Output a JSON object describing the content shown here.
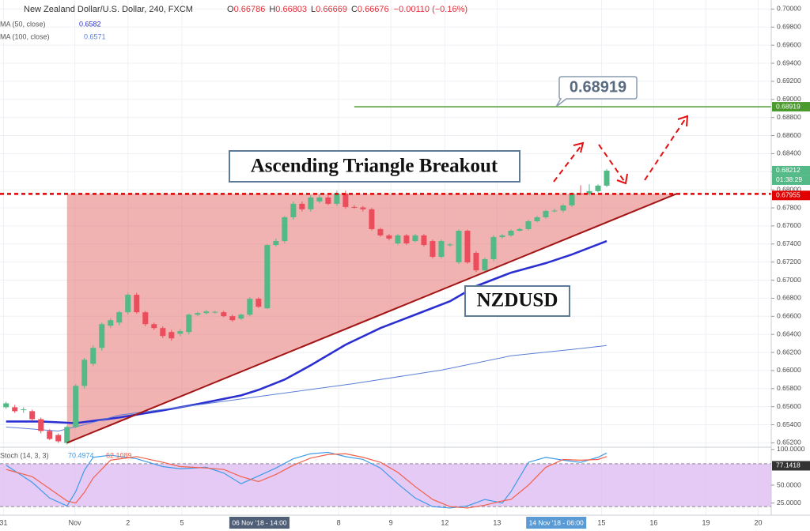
{
  "chart_data": {
    "type": "candlestick",
    "header": {
      "title": "New Zealand Dollar/U.S. Dollar, 240, FXCM",
      "letters": [
        "O",
        "H",
        "L",
        "C"
      ],
      "open": 0.66786,
      "high": 0.66803,
      "low": 0.66669,
      "close": 0.66676,
      "change": "−0.00110 (−0.16%)"
    },
    "up_color": "#53b987",
    "down_color": "#eb4d5c",
    "xlim": [
      -0.7,
      87.9
    ],
    "ylim": [
      0.6516,
      0.701
    ],
    "grid": true,
    "yticks": [
      {
        "value": 0.7,
        "label": "0.70000"
      },
      {
        "value": 0.698,
        "label": "0.69800"
      },
      {
        "value": 0.696,
        "label": "0.69600"
      },
      {
        "value": 0.694,
        "label": "0.69400"
      },
      {
        "value": 0.692,
        "label": "0.69200"
      },
      {
        "value": 0.69,
        "label": "0.69000"
      },
      {
        "value": 0.688,
        "label": "0.68800"
      },
      {
        "value": 0.686,
        "label": "0.68600"
      },
      {
        "value": 0.684,
        "label": "0.68400"
      },
      {
        "value": 0.682,
        "label": "0.68200"
      },
      {
        "value": 0.68,
        "label": "0.68000"
      },
      {
        "value": 0.678,
        "label": "0.67800"
      },
      {
        "value": 0.676,
        "label": "0.67600"
      },
      {
        "value": 0.674,
        "label": "0.67400"
      },
      {
        "value": 0.672,
        "label": "0.67200"
      },
      {
        "value": 0.67,
        "label": "0.67000"
      },
      {
        "value": 0.668,
        "label": "0.66800"
      },
      {
        "value": 0.666,
        "label": "0.66600"
      },
      {
        "value": 0.664,
        "label": "0.66400"
      },
      {
        "value": 0.662,
        "label": "0.66200"
      },
      {
        "value": 0.66,
        "label": "0.66000"
      },
      {
        "value": 0.658,
        "label": "0.65800"
      },
      {
        "value": 0.656,
        "label": "0.65600"
      },
      {
        "value": 0.654,
        "label": "0.65400"
      },
      {
        "value": 0.652,
        "label": "0.65200"
      }
    ],
    "xticks": [
      {
        "value": -0.3,
        "label": "31"
      },
      {
        "value": 7.9,
        "label": "Nov"
      },
      {
        "value": 14,
        "label": "2"
      },
      {
        "value": 20.2,
        "label": "5"
      },
      {
        "value": 38.2,
        "label": "8"
      },
      {
        "value": 44.2,
        "label": "9"
      },
      {
        "value": 50.4,
        "label": "12"
      },
      {
        "value": 56.4,
        "label": "13"
      },
      {
        "value": 68.4,
        "label": "15"
      },
      {
        "value": 74.4,
        "label": "16"
      },
      {
        "value": 80.4,
        "label": "19"
      },
      {
        "value": 86.4,
        "label": "20"
      }
    ],
    "range_xlabels": [
      {
        "value": 29.1,
        "label": "06 Nov '18 - 14:00"
      },
      {
        "value": 63.2,
        "label": "14 Nov '18 - 06:00"
      }
    ],
    "candles": {
      "open": [
        0.65594,
        0.65594,
        0.65567,
        0.6555,
        0.65462,
        0.65331,
        0.65287,
        0.65199,
        0.65375,
        0.6583,
        0.66075,
        0.66251,
        0.66496,
        0.66531,
        0.66645,
        0.66838,
        0.66645,
        0.66513,
        0.6647,
        0.66426,
        0.66408,
        0.66426,
        0.66618,
        0.66636,
        0.66645,
        0.66645,
        0.66601,
        0.66575,
        0.66618,
        0.66794,
        0.66689,
        0.67389,
        0.67433,
        0.67696,
        0.67845,
        0.67784,
        0.67871,
        0.67915,
        0.67845,
        0.67959,
        0.6781,
        0.67805,
        0.67784,
        0.67565,
        0.67495,
        0.67407,
        0.67495,
        0.67433,
        0.67495,
        0.67433,
        0.67258,
        0.67389,
        0.67197,
        0.67547,
        0.67302,
        0.67109,
        0.67232,
        0.67477,
        0.67495,
        0.67547,
        0.67565,
        0.67652,
        0.67696,
        0.67766,
        0.6777,
        0.67827,
        0.67959,
        0.67955,
        0.67985,
        0.68046
      ],
      "high": [
        0.65655,
        0.6562,
        0.65594,
        0.65567,
        0.6548,
        0.6535,
        0.65305,
        0.6539,
        0.6585,
        0.6614,
        0.6628,
        0.6653,
        0.6658,
        0.6666,
        0.6686,
        0.6686,
        0.6666,
        0.6653,
        0.6649,
        0.6645,
        0.6646,
        0.6663,
        0.6665,
        0.6667,
        0.6666,
        0.6666,
        0.6662,
        0.6663,
        0.6681,
        0.6681,
        0.674,
        0.6746,
        0.6771,
        0.6787,
        0.6787,
        0.6794,
        0.6795,
        0.6794,
        0.6799,
        0.6799,
        0.6783,
        0.6782,
        0.678,
        0.6758,
        0.6751,
        0.6751,
        0.6751,
        0.6751,
        0.6751,
        0.6745,
        0.6745,
        0.6741,
        0.6756,
        0.6756,
        0.6732,
        0.6725,
        0.675,
        0.6751,
        0.6756,
        0.6758,
        0.6767,
        0.6771,
        0.6778,
        0.6779,
        0.6784,
        0.6797,
        0.6805,
        0.6806,
        0.6806,
        0.6823
      ],
      "low": [
        0.65576,
        0.65532,
        0.65532,
        0.65445,
        0.65305,
        0.6523,
        0.65199,
        0.65182,
        0.6536,
        0.658,
        0.6605,
        0.6622,
        0.6647,
        0.665,
        0.6662,
        0.6663,
        0.6649,
        0.6645,
        0.6636,
        0.6633,
        0.6638,
        0.664,
        0.666,
        0.6662,
        0.6663,
        0.6659,
        0.6654,
        0.6656,
        0.666,
        0.6669,
        0.6668,
        0.6737,
        0.6741,
        0.6767,
        0.6776,
        0.6776,
        0.6785,
        0.6783,
        0.6782,
        0.6779,
        0.6779,
        0.6776,
        0.6755,
        0.6748,
        0.6744,
        0.6739,
        0.6739,
        0.6742,
        0.6737,
        0.6724,
        0.6724,
        0.6737,
        0.6718,
        0.6718,
        0.6709,
        0.6708,
        0.6721,
        0.6746,
        0.6748,
        0.6754,
        0.6755,
        0.6764,
        0.6768,
        0.6775,
        0.6775,
        0.6781,
        0.6794,
        0.6794,
        0.6797,
        0.6803
      ],
      "close": [
        0.65637,
        0.6555,
        0.6557,
        0.65462,
        0.65331,
        0.65243,
        0.65217,
        0.65375,
        0.6583,
        0.66119,
        0.66251,
        0.66513,
        0.66557,
        0.66645,
        0.66838,
        0.66645,
        0.66513,
        0.6647,
        0.66382,
        0.66356,
        0.66435,
        0.66618,
        0.66636,
        0.66653,
        0.6665,
        0.66601,
        0.66557,
        0.66618,
        0.66794,
        0.66706,
        0.67389,
        0.67433,
        0.67696,
        0.67845,
        0.67784,
        0.67915,
        0.67915,
        0.67845,
        0.67959,
        0.6781,
        0.67805,
        0.67784,
        0.67565,
        0.67495,
        0.6746,
        0.67495,
        0.67407,
        0.67495,
        0.67389,
        0.67258,
        0.67433,
        0.67395,
        0.67547,
        0.67197,
        0.67109,
        0.67232,
        0.67477,
        0.67495,
        0.67547,
        0.67565,
        0.67652,
        0.67696,
        0.67766,
        0.6777,
        0.67827,
        0.67959,
        0.67955,
        0.67985,
        0.68046,
        0.68212
      ]
    },
    "countdown": "01:38:29",
    "moving_averages": [
      {
        "name": "MA (50, close)",
        "legend_value": 0.6582,
        "color": "#2b2fd1",
        "width": 2.6,
        "x": [
          0,
          4,
          8,
          13,
          18,
          22,
          27,
          29,
          32,
          35,
          39,
          43,
          47,
          51,
          54,
          58,
          62,
          65,
          69
        ],
        "values": [
          0.65436,
          0.65436,
          0.65418,
          0.6548,
          0.65559,
          0.65629,
          0.65725,
          0.65786,
          0.659,
          0.66058,
          0.66286,
          0.6647,
          0.66618,
          0.66767,
          0.66934,
          0.67083,
          0.67188,
          0.67284,
          0.67433
        ]
      },
      {
        "name": "MA (100, close)",
        "legend_value": 0.6571,
        "color": "#5b7fd6",
        "width": 1,
        "x": [
          0,
          6,
          9,
          13,
          22,
          30,
          40,
          50,
          58,
          65,
          69
        ],
        "values": [
          0.65375,
          0.65331,
          0.65401,
          0.65506,
          0.6562,
          0.65725,
          0.65856,
          0.66005,
          0.66163,
          0.66233,
          0.66277
        ]
      }
    ],
    "levels": [
      {
        "value": 0.68919,
        "color": "#4a9a2e",
        "from": 40
      },
      {
        "value": 0.67955,
        "color": "#e00000"
      }
    ],
    "triangle": {
      "x": [
        7,
        77
      ],
      "low": 0.652,
      "top": 0.67955
    },
    "annotations": [
      "Ascending Triangle Breakout",
      "NZDUSD"
    ],
    "stoch": {
      "name": "Stoch (14, 3, 3)",
      "ylim": [
        8,
        102
      ],
      "band": [
        20,
        80
      ],
      "yticks": [
        {
          "value": 100,
          "label": "100.0000"
        },
        {
          "value": 50,
          "label": "50.0000"
        },
        {
          "value": 25,
          "label": "25.0000"
        }
      ],
      "current": 77.1418,
      "series": [
        {
          "name": "%K",
          "legend_value": 70.4974,
          "color": "#3d9be9",
          "x": [
            0,
            3,
            5,
            7,
            8,
            9,
            10,
            12,
            15,
            18,
            20,
            23,
            25,
            27,
            29,
            31,
            33,
            35,
            37,
            39,
            41,
            43,
            45,
            47,
            49,
            51,
            53,
            55,
            57,
            58,
            60,
            62,
            64,
            66,
            68,
            69
          ],
          "values": [
            78,
            54,
            32,
            21,
            41,
            71,
            89,
            92,
            87,
            76,
            73,
            75,
            67,
            52,
            63,
            74,
            87,
            94,
            96,
            90,
            86,
            74,
            52,
            32,
            20,
            18,
            21,
            30,
            25,
            41,
            82,
            89,
            85,
            82,
            89,
            95
          ]
        },
        {
          "name": "%D",
          "legend_value": 62.1089,
          "color": "#f2604a",
          "x": [
            0,
            3,
            5,
            7,
            8,
            9,
            10,
            12,
            15,
            18,
            20,
            23,
            25,
            27,
            29,
            31,
            33,
            35,
            37,
            39,
            41,
            43,
            45,
            47,
            49,
            51,
            53,
            55,
            57,
            58,
            60,
            62,
            64,
            66,
            68,
            69
          ],
          "values": [
            72,
            62,
            45,
            28,
            25,
            40,
            60,
            85,
            90,
            82,
            76,
            74,
            72,
            62,
            55,
            65,
            78,
            88,
            93,
            94,
            89,
            82,
            68,
            48,
            30,
            20,
            18,
            22,
            28,
            30,
            50,
            75,
            86,
            85,
            86,
            90
          ]
        }
      ]
    }
  }
}
